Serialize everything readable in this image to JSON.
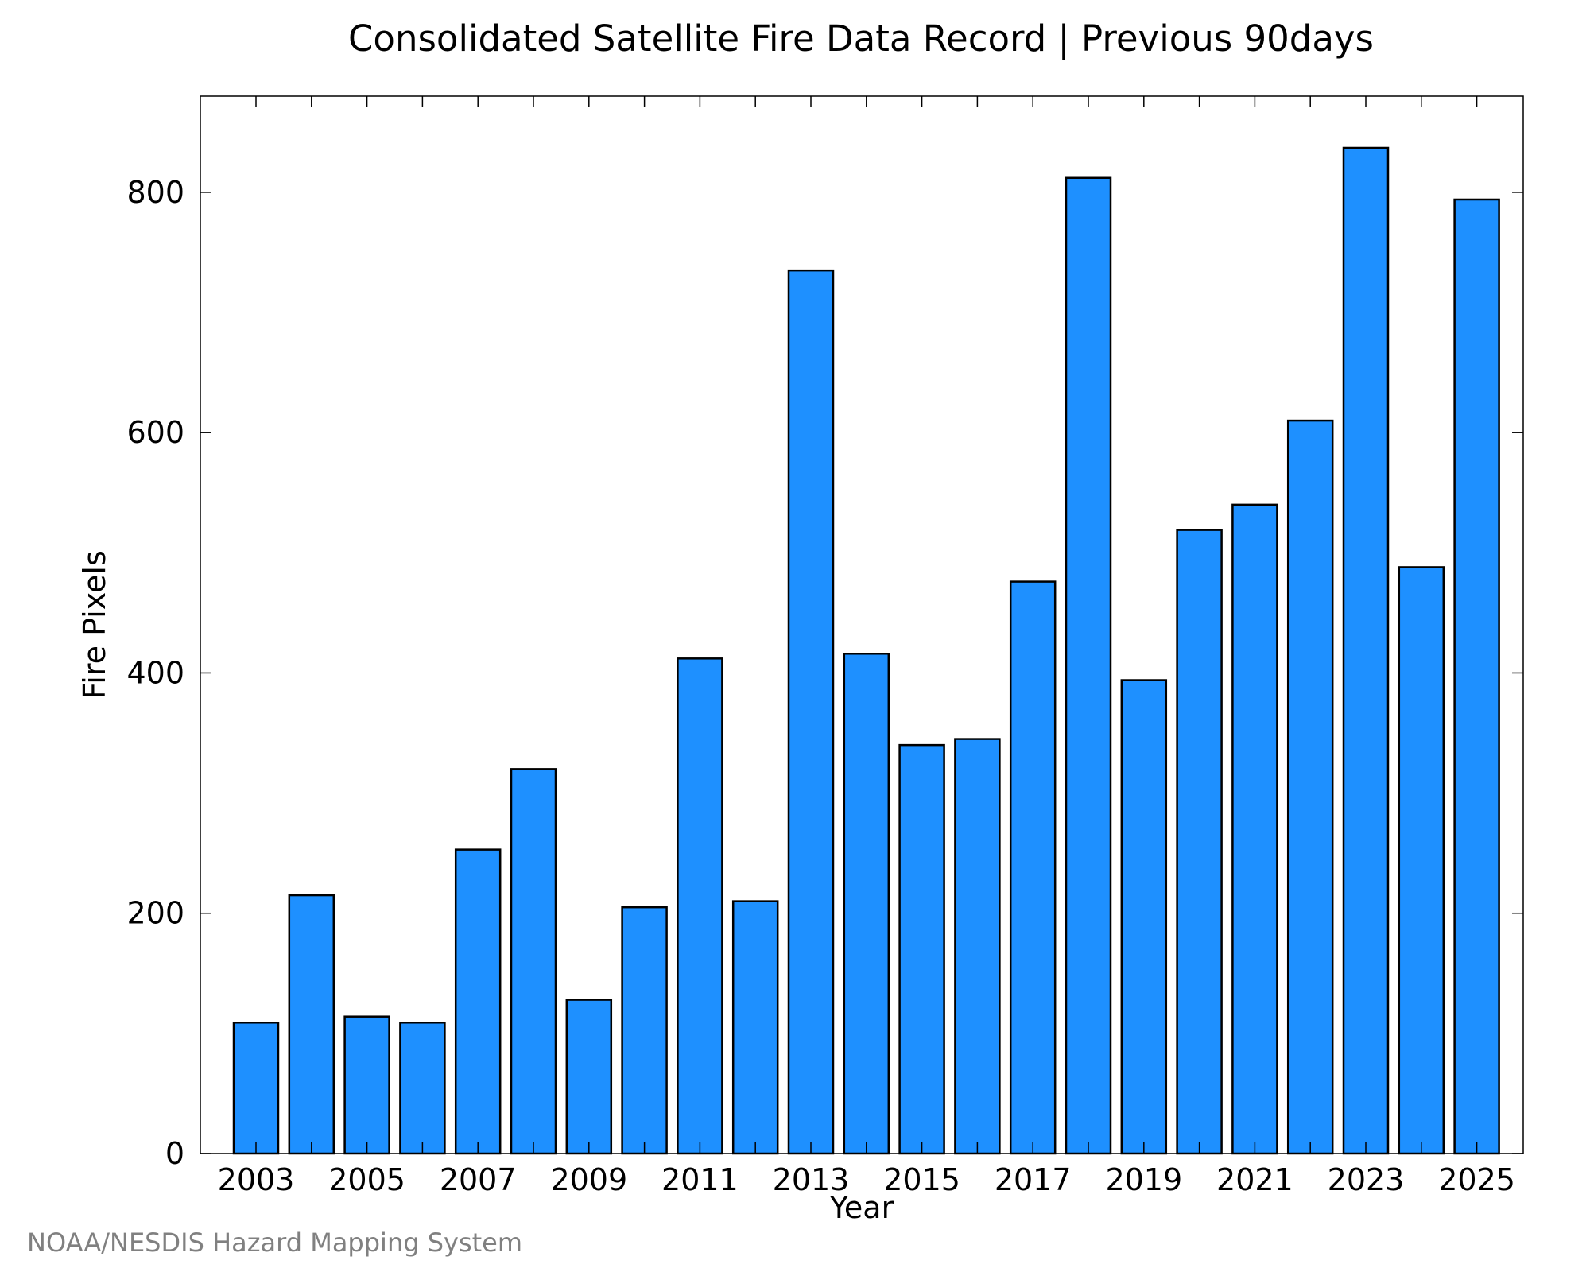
{
  "chart_data": {
    "type": "bar",
    "title": "Consolidated Satellite Fire Data Record | Previous 90days",
    "xlabel": "Year",
    "ylabel": "Fire Pixels",
    "categories": [
      "2003",
      "2004",
      "2005",
      "2006",
      "2007",
      "2008",
      "2009",
      "2010",
      "2011",
      "2012",
      "2013",
      "2014",
      "2015",
      "2016",
      "2017",
      "2018",
      "2019",
      "2020",
      "2021",
      "2022",
      "2023",
      "2024",
      "2025"
    ],
    "values": [
      109,
      215,
      114,
      109,
      253,
      320,
      128,
      205,
      412,
      210,
      735,
      416,
      340,
      345,
      476,
      812,
      394,
      519,
      540,
      610,
      837,
      488,
      794
    ],
    "x_tick_labels": [
      "2003",
      "2005",
      "2007",
      "2009",
      "2011",
      "2013",
      "2015",
      "2017",
      "2019",
      "2021",
      "2023",
      "2025"
    ],
    "y_ticks": [
      0,
      200,
      400,
      600,
      800
    ],
    "y_tick_labels": [
      "0",
      "200",
      "400",
      "600",
      "800"
    ],
    "ylim": [
      0,
      880
    ],
    "bar_color": "#1e90ff",
    "bar_edge_color": "#000000",
    "grid": false,
    "legend": "none"
  },
  "credit": "NOAA/NESDIS Hazard Mapping System"
}
